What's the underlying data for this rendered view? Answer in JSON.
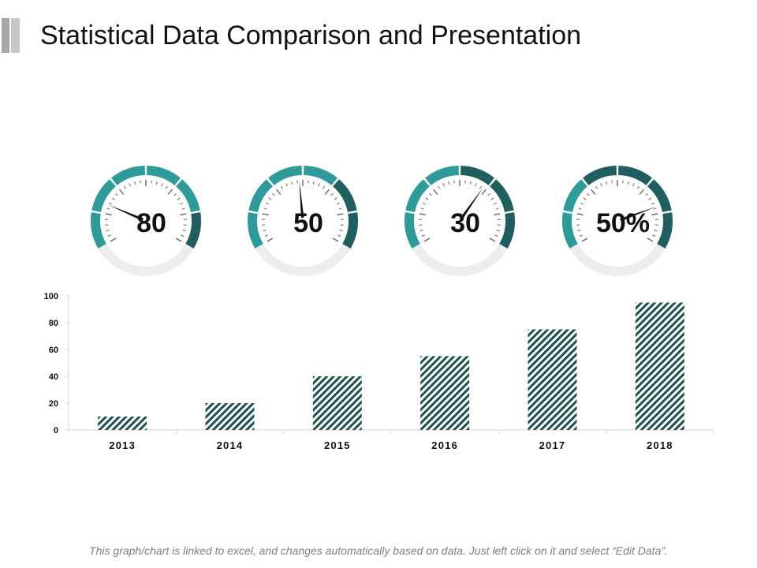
{
  "slide": {
    "title": "Statistical Data Comparison and Presentation",
    "footnote": "This graph/chart is linked to excel, and changes automatically based on data. Just left click on it and select “Edit Data”."
  },
  "colors": {
    "teal_light": "#2e9a9a",
    "teal_dark": "#1f5f5f",
    "track_gray": "#ededed",
    "tick_gray": "#666666",
    "needle": "#111111",
    "bar_stripe": "#1e5050",
    "axis_gray": "#d0d0d0",
    "accent_gray_1": "#a6a6a6",
    "accent_gray_2": "#c8c8c8"
  },
  "chart_data": [
    {
      "type": "gauge",
      "gauges": [
        {
          "label": "80",
          "value": 80,
          "max": 100,
          "filled_segments": 6,
          "dark_segments": 1
        },
        {
          "label": "50",
          "value": 50,
          "max": 100,
          "filled_segments": 6,
          "dark_segments": 2
        },
        {
          "label": "30",
          "value": 30,
          "max": 100,
          "filled_segments": 6,
          "dark_segments": 3
        },
        {
          "label": "50%",
          "value": 50,
          "max": 100,
          "filled_segments": 6,
          "dark_segments": 4
        }
      ],
      "segments_total": 6
    },
    {
      "type": "bar",
      "categories": [
        "2013",
        "2014",
        "2015",
        "2016",
        "2017",
        "2018"
      ],
      "values": [
        10,
        20,
        40,
        55,
        75,
        95
      ],
      "yticks": [
        0,
        20,
        40,
        60,
        80,
        100
      ],
      "ylim": [
        0,
        100
      ],
      "title": "",
      "xlabel": "",
      "ylabel": "",
      "pattern": "diagonal-stripes"
    }
  ]
}
